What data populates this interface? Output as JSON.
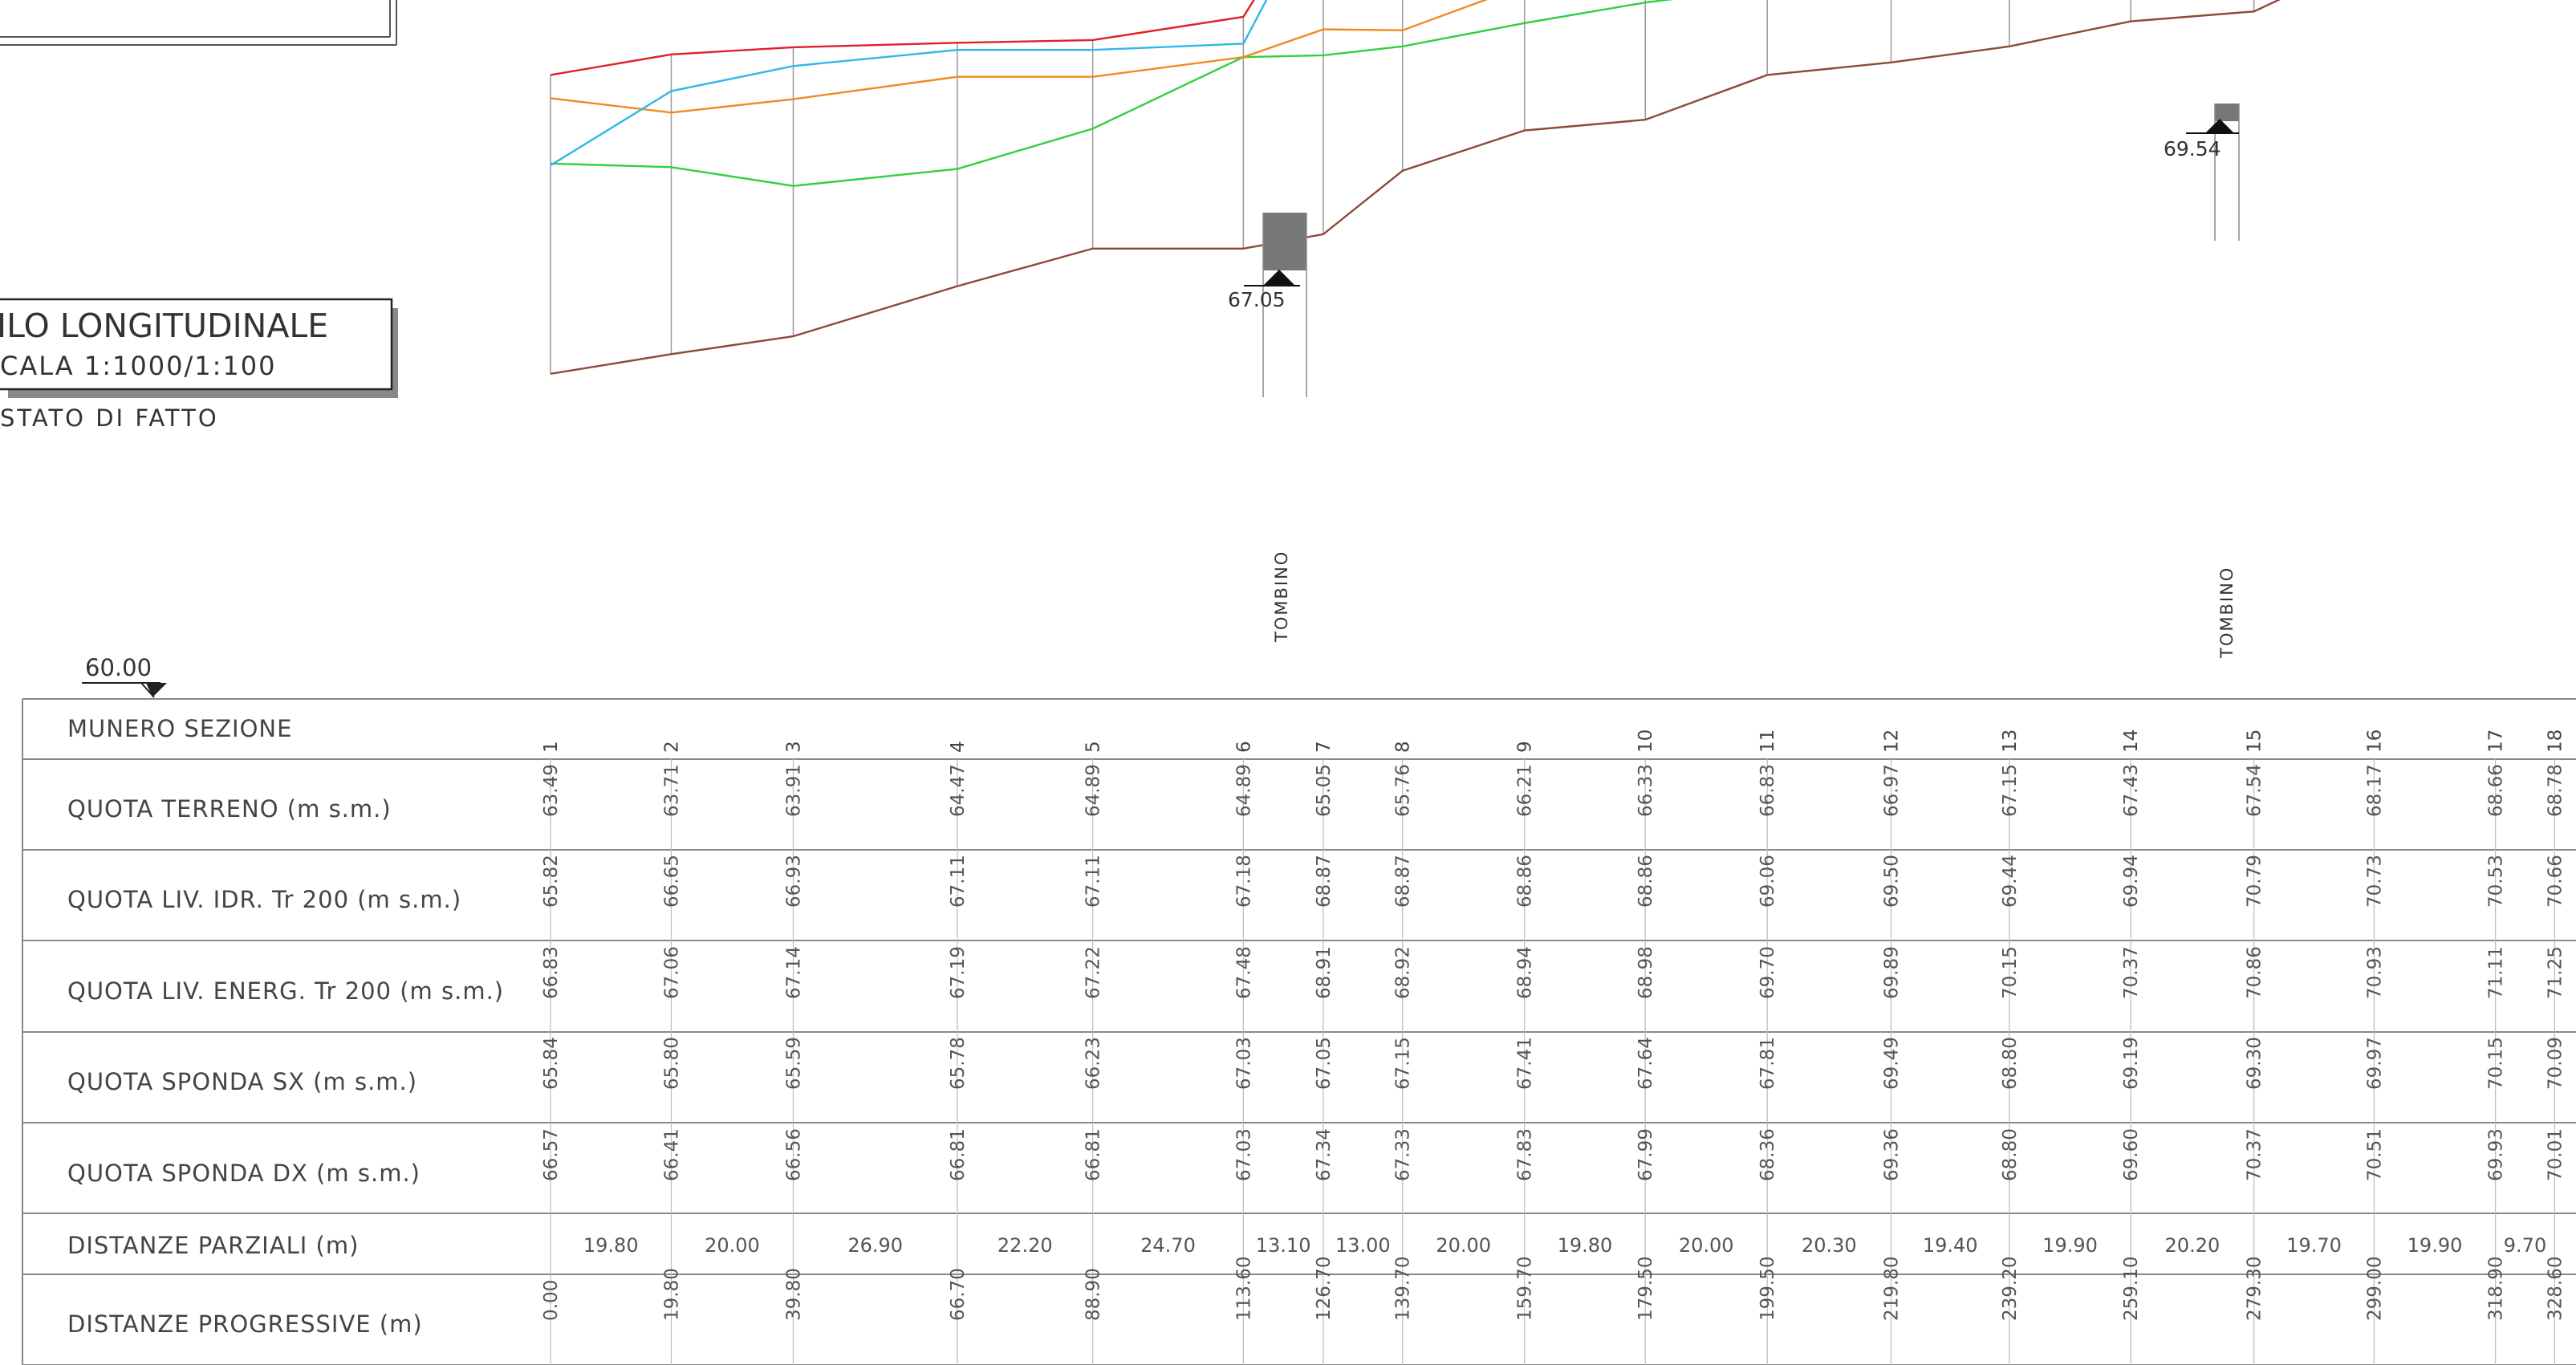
{
  "title_box": {
    "title": "ILO LONGITUDINALE",
    "scale": "CALA 1:1000/1:100",
    "state": "STATO DI FATTO"
  },
  "datum": "60.00",
  "structures": [
    {
      "label": "TOMBINO",
      "elevation": "67.05"
    },
    {
      "label": "TOMBINO",
      "elevation": "69.54"
    }
  ],
  "row_labels": {
    "section": "MUNERO SEZIONE",
    "terrain": "QUOTA TERRENO (m s.m.)",
    "water": "QUOTA LIV. IDR. Tr 200 (m s.m.)",
    "energy": "QUOTA LIV. ENERG. Tr 200 (m s.m.)",
    "left_bank": "QUOTA SPONDA SX (m s.m.)",
    "right_bank": "QUOTA SPONDA DX (m s.m.)",
    "partial": "DISTANZE PARZIALI (m)",
    "progressive": "DISTANZE PROGRESSIVE (m)"
  },
  "colors": {
    "energy": "#e0202a",
    "water": "#30b8e8",
    "right_bank": "#f08a20",
    "left_bank": "#30d040",
    "terrain": "#8b4a3c",
    "structure": "#777777"
  },
  "chart_data": {
    "type": "line",
    "sections": [
      "1",
      "2",
      "3",
      "4",
      "5",
      "6",
      "7",
      "8",
      "9",
      "10",
      "11",
      "12",
      "13",
      "14",
      "15",
      "16",
      "17",
      "18"
    ],
    "x": [
      0.0,
      19.8,
      39.8,
      66.7,
      88.9,
      113.6,
      126.7,
      139.7,
      159.7,
      179.5,
      199.5,
      219.8,
      239.2,
      259.1,
      279.3,
      299.0,
      318.9,
      328.6
    ],
    "x_labels": [
      "0.00",
      "19.80",
      "39.80",
      "66.70",
      "88.90",
      "113.60",
      "126.70",
      "139.70",
      "159.70",
      "179.50",
      "199.50",
      "219.80",
      "239.20",
      "259.10",
      "279.30",
      "299.00",
      "318.90",
      "328.60"
    ],
    "partial_distances": [
      "19.80",
      "20.00",
      "26.90",
      "22.20",
      "24.70",
      "13.10",
      "13.00",
      "20.00",
      "19.80",
      "20.00",
      "20.30",
      "19.40",
      "19.90",
      "20.20",
      "19.70",
      "19.90",
      "9.70"
    ],
    "series": [
      {
        "key": "terrain",
        "values": [
          63.49,
          63.71,
          63.91,
          64.47,
          64.89,
          64.89,
          65.05,
          65.76,
          66.21,
          66.33,
          66.83,
          66.97,
          67.15,
          67.43,
          67.54,
          68.17,
          68.66,
          68.78
        ],
        "labels": [
          "63.49",
          "63.71",
          "63.91",
          "64.47",
          "64.89",
          "64.89",
          "65.05",
          "65.76",
          "66.21",
          "66.33",
          "66.83",
          "66.97",
          "67.15",
          "67.43",
          "67.54",
          "68.17",
          "68.66",
          "68.78"
        ]
      },
      {
        "key": "water",
        "values": [
          65.82,
          66.65,
          66.93,
          67.11,
          67.11,
          67.18,
          68.87,
          68.87,
          68.86,
          68.86,
          69.06,
          69.5,
          69.44,
          69.94,
          70.79,
          70.73,
          70.53,
          70.66
        ],
        "labels": [
          "65.82",
          "66.65",
          "66.93",
          "67.11",
          "67.11",
          "67.18",
          "68.87",
          "68.87",
          "68.86",
          "68.86",
          "69.06",
          "69.50",
          "69.44",
          "69.94",
          "70.79",
          "70.73",
          "70.53",
          "70.66"
        ]
      },
      {
        "key": "energy",
        "values": [
          66.83,
          67.06,
          67.14,
          67.19,
          67.22,
          67.48,
          68.91,
          68.92,
          68.94,
          68.98,
          69.7,
          69.89,
          70.15,
          70.37,
          70.86,
          70.93,
          71.11,
          71.25
        ],
        "labels": [
          "66.83",
          "67.06",
          "67.14",
          "67.19",
          "67.22",
          "67.48",
          "68.91",
          "68.92",
          "68.94",
          "68.98",
          "69.70",
          "69.89",
          "70.15",
          "70.37",
          "70.86",
          "70.93",
          "71.11",
          "71.25"
        ]
      },
      {
        "key": "left_bank",
        "values": [
          65.84,
          65.8,
          65.59,
          65.78,
          66.23,
          67.03,
          67.05,
          67.15,
          67.41,
          67.64,
          67.81,
          69.49,
          68.8,
          69.19,
          69.3,
          69.97,
          70.15,
          70.09
        ],
        "labels": [
          "65.84",
          "65.80",
          "65.59",
          "65.78",
          "66.23",
          "67.03",
          "67.05",
          "67.15",
          "67.41",
          "67.64",
          "67.81",
          "69.49",
          "68.80",
          "69.19",
          "69.30",
          "69.97",
          "70.15",
          "70.09"
        ]
      },
      {
        "key": "right_bank",
        "values": [
          66.57,
          66.41,
          66.56,
          66.81,
          66.81,
          67.03,
          67.34,
          67.33,
          67.83,
          67.99,
          68.36,
          69.36,
          68.8,
          69.6,
          70.37,
          70.51,
          69.93,
          70.01
        ],
        "labels": [
          "66.57",
          "66.41",
          "66.56",
          "66.81",
          "66.81",
          "67.03",
          "67.34",
          "67.33",
          "67.83",
          "67.99",
          "68.36",
          "69.36",
          "68.80",
          "69.60",
          "70.37",
          "70.51",
          "69.93",
          "70.01"
        ]
      }
    ]
  }
}
